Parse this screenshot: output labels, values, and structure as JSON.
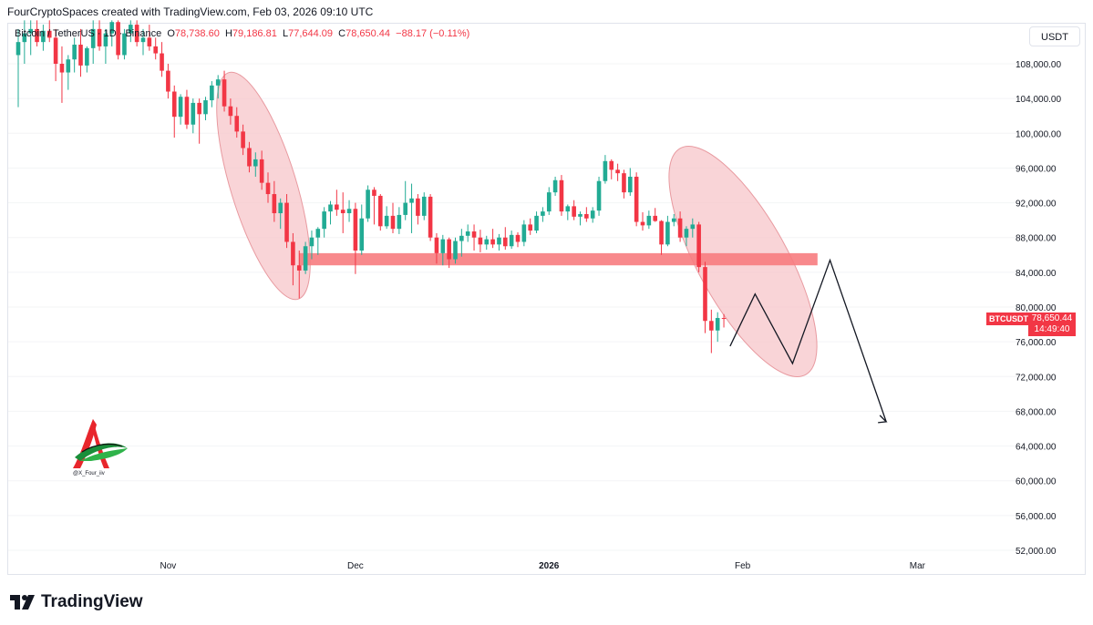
{
  "header": {
    "text": "FourCryptoSpaces created with TradingView.com, Feb 03, 2026 09:10 UTC"
  },
  "legend": {
    "symbol": "Bitcoin / TetherUS · 1D · Binance",
    "open_label": "O",
    "open": "78,738.60",
    "high_label": "H",
    "high": "79,186.81",
    "low_label": "L",
    "low": "77,644.09",
    "close_label": "C",
    "close": "78,650.44",
    "change": "−88.17 (−0.11%)"
  },
  "currency_button": {
    "label": "USDT"
  },
  "price_tag": {
    "symbol": "BTCUSDT",
    "price": "78,650.44",
    "countdown": "14:49:40"
  },
  "watermark": {
    "handle": "@X_Four_iiv"
  },
  "footer": {
    "brand": "TradingView"
  },
  "colors": {
    "up": "#22ab94",
    "down": "#f23645",
    "zone": "#f77c80",
    "ellipse": "#f7c6c9"
  },
  "chart_data": {
    "type": "candlestick",
    "title": "Bitcoin / TetherUS · 1D · Binance",
    "ylim": [
      50500,
      113000
    ],
    "y_ticks": [
      52000,
      56000,
      60000,
      64000,
      68000,
      72000,
      76000,
      80000,
      84000,
      88000,
      92000,
      96000,
      100000,
      104000,
      108000
    ],
    "y_tick_labels": [
      "52,000.00",
      "56,000.00",
      "60,000.00",
      "64,000.00",
      "68,000.00",
      "72,000.00",
      "76,000.00",
      "80,000.00",
      "84,000.00",
      "88,000.00",
      "92,000.00",
      "96,000.00",
      "100,000.00",
      "104,000.00",
      "108,000.00"
    ],
    "x_ticks": [
      {
        "label": "Nov",
        "day": 24
      },
      {
        "label": "Dec",
        "day": 54
      },
      {
        "label": "2026",
        "day": 85
      },
      {
        "label": "Feb",
        "day": 116
      },
      {
        "label": "Mar",
        "day": 144
      }
    ],
    "candles": [
      [
        109000,
        112000,
        103000,
        110500
      ],
      [
        110500,
        113000,
        108000,
        111500
      ],
      [
        111500,
        113000,
        109000,
        112000
      ],
      [
        112000,
        113000,
        110000,
        110500
      ],
      [
        110500,
        112500,
        109500,
        111800
      ],
      [
        111800,
        113000,
        110500,
        111000
      ],
      [
        111000,
        112000,
        106000,
        108000
      ],
      [
        108000,
        110000,
        103500,
        107000
      ],
      [
        107000,
        109000,
        105000,
        108500
      ],
      [
        108500,
        111000,
        107000,
        110200
      ],
      [
        110200,
        112000,
        106500,
        107800
      ],
      [
        107800,
        110000,
        107000,
        109800
      ],
      [
        109800,
        113000,
        108000,
        112000
      ],
      [
        112000,
        113000,
        109500,
        110000
      ],
      [
        110000,
        112000,
        108000,
        111500
      ],
      [
        111500,
        113000,
        110000,
        112800
      ],
      [
        112800,
        113000,
        108500,
        109000
      ],
      [
        109000,
        112000,
        108500,
        111500
      ],
      [
        111500,
        113000,
        110500,
        112500
      ],
      [
        112500,
        113000,
        110000,
        110500
      ],
      [
        110500,
        112000,
        109000,
        111000
      ],
      [
        111000,
        112500,
        109500,
        110000
      ],
      [
        110000,
        111000,
        108500,
        109200
      ],
      [
        109200,
        110500,
        106500,
        107200
      ],
      [
        107200,
        108000,
        104000,
        104800
      ],
      [
        104800,
        105500,
        99500,
        101900
      ],
      [
        101900,
        104500,
        101000,
        104200
      ],
      [
        104200,
        105000,
        100500,
        101000
      ],
      [
        101000,
        104000,
        100000,
        103500
      ],
      [
        103500,
        104000,
        98800,
        102200
      ],
      [
        102200,
        104200,
        101500,
        103800
      ],
      [
        103800,
        106000,
        103000,
        105500
      ],
      [
        105500,
        106700,
        104000,
        106200
      ],
      [
        106200,
        107200,
        102500,
        103100
      ],
      [
        103100,
        104000,
        101000,
        102000
      ],
      [
        102000,
        103000,
        99500,
        100200
      ],
      [
        100200,
        101000,
        97500,
        98300
      ],
      [
        98300,
        99000,
        95500,
        96200
      ],
      [
        96200,
        97800,
        95000,
        97000
      ],
      [
        97000,
        98000,
        93500,
        94300
      ],
      [
        94300,
        95500,
        92000,
        93000
      ],
      [
        93000,
        94500,
        89800,
        90800
      ],
      [
        90800,
        92500,
        89000,
        92000
      ],
      [
        92000,
        93000,
        86800,
        87500
      ],
      [
        87500,
        88500,
        82500,
        84800
      ],
      [
        84800,
        86500,
        81000,
        84200
      ],
      [
        84200,
        87500,
        83800,
        87000
      ],
      [
        87000,
        88800,
        85500,
        88000
      ],
      [
        88000,
        89200,
        86000,
        89000
      ],
      [
        89000,
        91500,
        88000,
        91000
      ],
      [
        91000,
        92200,
        89500,
        91800
      ],
      [
        91800,
        93500,
        90500,
        91200
      ],
      [
        91200,
        93200,
        88500,
        90800
      ],
      [
        90800,
        92300,
        89800,
        91300
      ],
      [
        91300,
        92000,
        83800,
        86500
      ],
      [
        86500,
        91800,
        86000,
        90200
      ],
      [
        90200,
        94000,
        89800,
        93500
      ],
      [
        93500,
        93800,
        89500,
        92800
      ],
      [
        92800,
        93000,
        88800,
        89300
      ],
      [
        89300,
        91600,
        89000,
        90500
      ],
      [
        90500,
        92000,
        88500,
        89000
      ],
      [
        89000,
        91500,
        88400,
        90600
      ],
      [
        90600,
        94500,
        90000,
        92000
      ],
      [
        92000,
        94200,
        88500,
        92500
      ],
      [
        92500,
        93000,
        89500,
        90500
      ],
      [
        90500,
        93200,
        90000,
        92700
      ],
      [
        92700,
        93000,
        87600,
        88000
      ],
      [
        88000,
        88500,
        85000,
        86200
      ],
      [
        86200,
        88300,
        84800,
        87800
      ],
      [
        87800,
        88000,
        84500,
        85500
      ],
      [
        85500,
        88000,
        85000,
        87600
      ],
      [
        87600,
        89000,
        85800,
        88200
      ],
      [
        88200,
        89500,
        87500,
        88700
      ],
      [
        88700,
        89500,
        86500,
        88000
      ],
      [
        88000,
        88900,
        86300,
        87200
      ],
      [
        87200,
        88200,
        86600,
        87800
      ],
      [
        87800,
        89000,
        86800,
        87200
      ],
      [
        87200,
        88400,
        86500,
        88000
      ],
      [
        88000,
        89200,
        86600,
        87000
      ],
      [
        87000,
        88800,
        86700,
        88300
      ],
      [
        88300,
        88600,
        86900,
        87500
      ],
      [
        87500,
        90000,
        87000,
        89500
      ],
      [
        89500,
        90200,
        88300,
        88800
      ],
      [
        88800,
        91000,
        88500,
        90500
      ],
      [
        90500,
        91500,
        89800,
        91000
      ],
      [
        91000,
        93800,
        90600,
        93200
      ],
      [
        93200,
        95000,
        92800,
        94600
      ],
      [
        94600,
        95200,
        90500,
        91000
      ],
      [
        91000,
        91800,
        90000,
        91600
      ],
      [
        91600,
        92300,
        90000,
        90400
      ],
      [
        90400,
        91000,
        89400,
        90700
      ],
      [
        90700,
        91500,
        89800,
        90200
      ],
      [
        90200,
        91500,
        89700,
        91100
      ],
      [
        91100,
        95000,
        90500,
        94500
      ],
      [
        94500,
        97500,
        94200,
        96800
      ],
      [
        96800,
        97000,
        94700,
        95800
      ],
      [
        95800,
        96500,
        94500,
        95400
      ],
      [
        95400,
        95800,
        92500,
        93200
      ],
      [
        93200,
        96000,
        92800,
        95000
      ],
      [
        95000,
        95500,
        89300,
        89800
      ],
      [
        89800,
        90900,
        88800,
        89400
      ],
      [
        89400,
        91100,
        89000,
        90500
      ],
      [
        90500,
        91400,
        89800,
        89900
      ],
      [
        89900,
        90000,
        86000,
        87200
      ],
      [
        87200,
        90500,
        87000,
        89800
      ],
      [
        89800,
        90700,
        89300,
        90200
      ],
      [
        90200,
        91000,
        87500,
        88000
      ],
      [
        88000,
        89300,
        87000,
        89000
      ],
      [
        89000,
        90200,
        88000,
        89500
      ],
      [
        89500,
        89800,
        84000,
        84600
      ],
      [
        84600,
        85200,
        77000,
        78400
      ],
      [
        78400,
        79700,
        74700,
        77300
      ],
      [
        77300,
        79400,
        76000,
        78738.6
      ],
      [
        78738.6,
        79186.81,
        77644.09,
        78650.44
      ]
    ],
    "annotations": [
      {
        "kind": "support_zone",
        "from_price": 84800,
        "to_price": 86200,
        "from_day": 45,
        "to_day": 128
      },
      {
        "kind": "ellipse",
        "desc": "decline Nov"
      },
      {
        "kind": "ellipse",
        "desc": "decline Jan-Feb"
      },
      {
        "kind": "projection_path",
        "points": [
          [
            114,
            75500
          ],
          [
            118,
            81500
          ],
          [
            124,
            73500
          ],
          [
            130,
            85400
          ],
          [
            139,
            66800
          ]
        ]
      }
    ]
  }
}
